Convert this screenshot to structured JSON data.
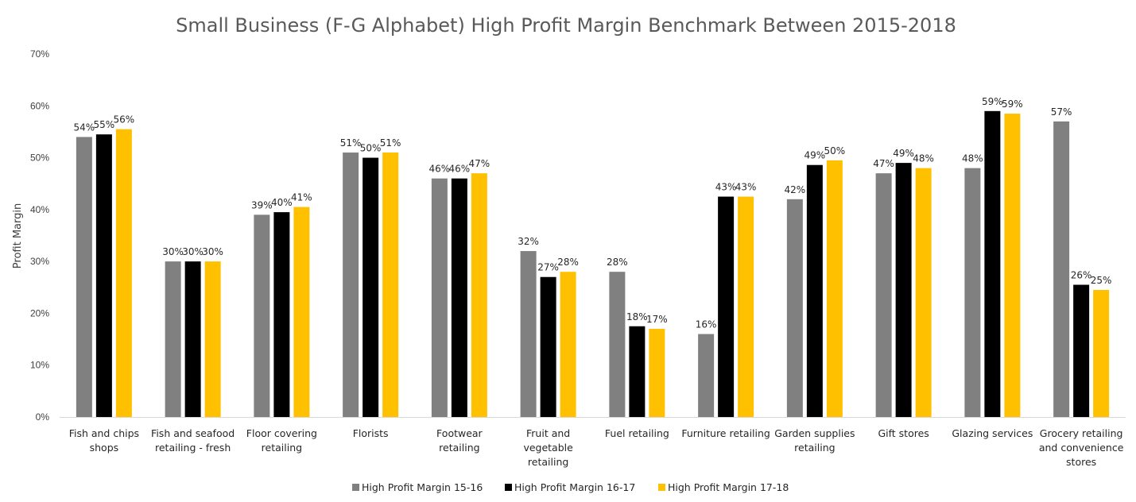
{
  "chart_data": {
    "type": "bar",
    "title": "Small Business (F-G Alphabet) High Profit Margin Benchmark Between 2015-2018",
    "xlabel": "",
    "ylabel": "Profit Margin",
    "ylim": [
      0,
      70
    ],
    "yticks": [
      "0%",
      "10%",
      "20%",
      "30%",
      "40%",
      "50%",
      "60%",
      "70%"
    ],
    "grid": false,
    "legend_position": "bottom",
    "categories": [
      [
        "Fish and chips",
        "shops"
      ],
      [
        "Fish and seafood",
        "retailing - fresh"
      ],
      [
        "Floor covering",
        "retailing"
      ],
      [
        "Florists"
      ],
      [
        "Footwear",
        "retailing"
      ],
      [
        "Fruit and",
        "vegetable",
        "retailing"
      ],
      [
        "Fuel retailing"
      ],
      [
        "Furniture retailing"
      ],
      [
        "Garden supplies",
        "retailing"
      ],
      [
        "Gift stores"
      ],
      [
        "Glazing services"
      ],
      [
        "Grocery retailing",
        "and convenience",
        "stores"
      ]
    ],
    "series": [
      {
        "name": "High Profit Margin 15-16",
        "color": "#808080",
        "values": [
          54,
          30,
          39,
          51,
          46,
          32,
          28,
          16,
          42,
          47,
          48,
          57
        ],
        "labels": [
          "54%",
          "30%",
          "39%",
          "51%",
          "46%",
          "32%",
          "28%",
          "16%",
          "42%",
          "47%",
          "48%",
          "57%"
        ]
      },
      {
        "name": "High Profit Margin 16-17",
        "color": "#000000",
        "values": [
          54.5,
          30,
          39.5,
          50,
          46,
          27,
          17.5,
          42.5,
          48.6,
          49,
          59,
          25.5
        ],
        "labels": [
          "55%",
          "30%",
          "40%",
          "50%",
          "46%",
          "27%",
          "18%",
          "43%",
          "49%",
          "49%",
          "59%",
          "26%"
        ]
      },
      {
        "name": "High Profit Margin 17-18",
        "color": "#FFC000",
        "values": [
          55.5,
          30,
          40.5,
          51,
          47,
          28,
          17,
          42.5,
          49.5,
          48,
          58.5,
          24.5
        ],
        "labels": [
          "56%",
          "30%",
          "41%",
          "51%",
          "47%",
          "28%",
          "17%",
          "43%",
          "50%",
          "48%",
          "59%",
          "25%"
        ]
      }
    ]
  }
}
